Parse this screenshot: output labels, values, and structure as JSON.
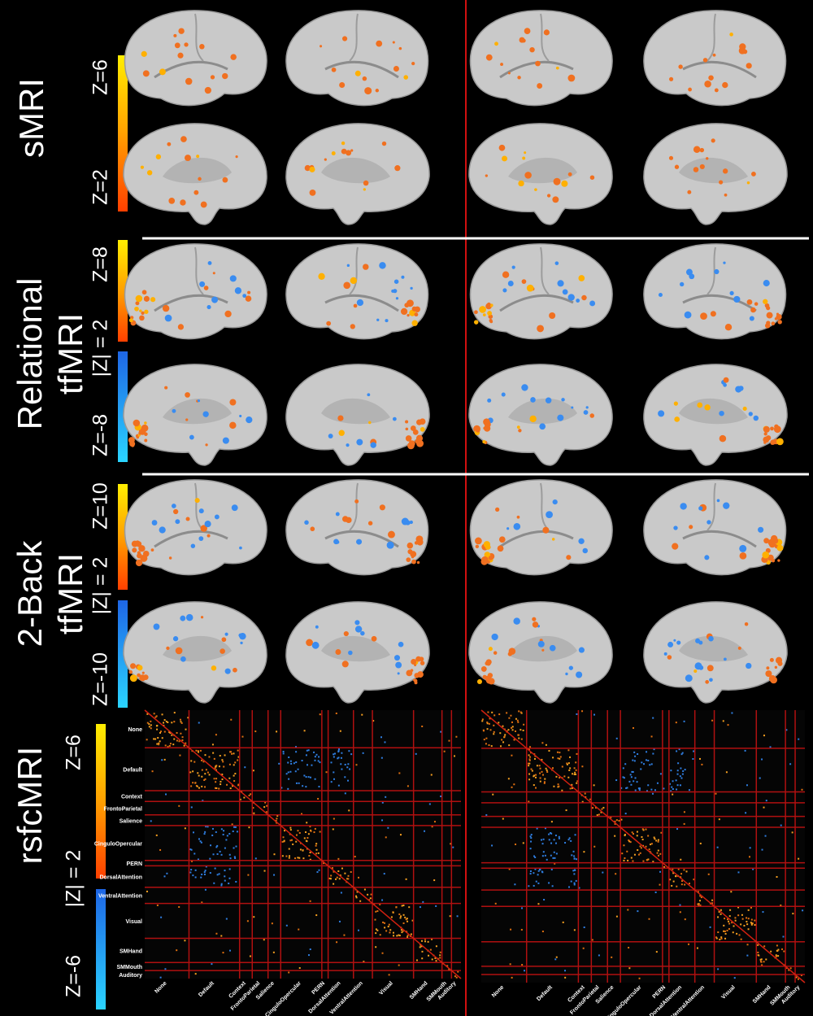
{
  "rows": [
    {
      "label": [
        "sMRI"
      ],
      "colorbar": {
        "max": "Z=6",
        "min": "Z=2"
      }
    },
    {
      "label": [
        "Relational",
        "tfMRI"
      ],
      "colorbar": {
        "max": "Z=8",
        "mid": "|Z| = 2",
        "min": "Z=-8"
      }
    },
    {
      "label": [
        "2-Back",
        "tfMRI"
      ],
      "colorbar": {
        "max": "Z=10",
        "mid": "|Z| = 2",
        "min": "Z=-10"
      }
    },
    {
      "label": [
        "rsfcMRI"
      ],
      "colorbar": {
        "max": "Z=6",
        "mid": "|Z| = 2",
        "min": "Z=-6"
      }
    }
  ],
  "networks": [
    "None",
    "Default",
    "Context",
    "FrontoParietal",
    "Salience",
    "CinguloOpercular",
    "PERN",
    "DorsalAttention",
    "VentralAttention",
    "Visual",
    "SMHand",
    "SMMouth",
    "Auditory"
  ]
}
